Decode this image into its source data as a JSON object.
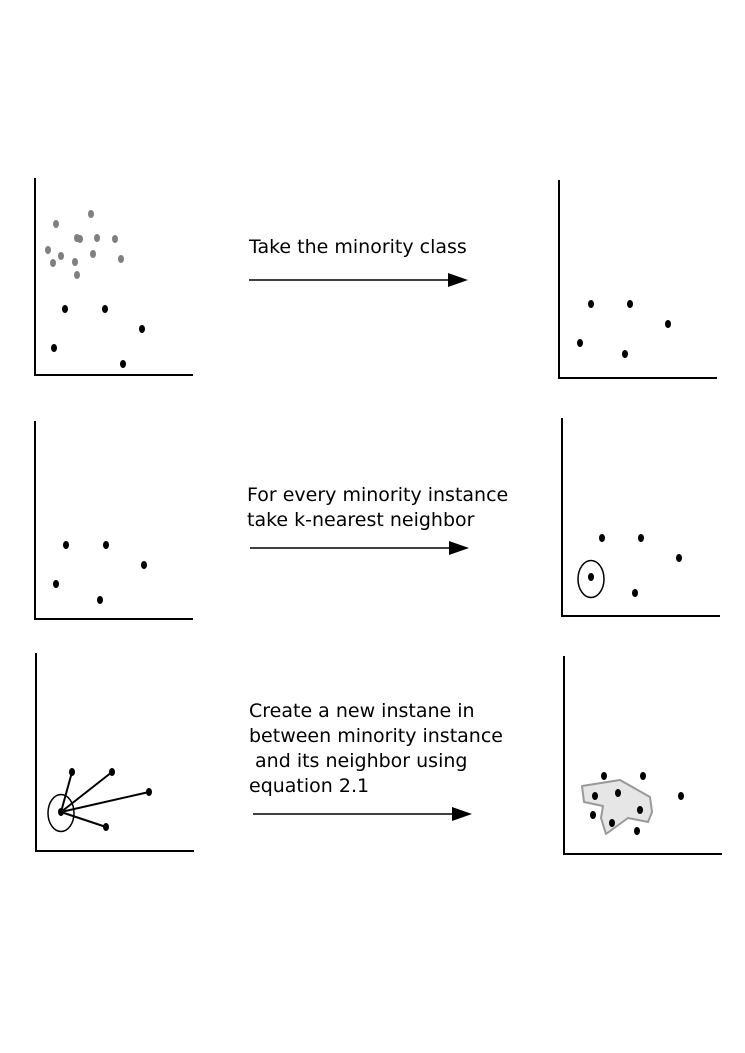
{
  "steps": [
    {
      "caption_lines": [
        "Take the minority class"
      ]
    },
    {
      "caption_lines": [
        "For every minority instance",
        "take k-nearest neighbor"
      ]
    },
    {
      "caption_lines": [
        "Create a new instane in",
        "between minority instance",
        " and its neighbor using",
        "equation 2.1"
      ]
    }
  ],
  "colors": {
    "minority_point": "#000000",
    "majority_point": "#808080",
    "synthetic_region_fill": "#e6e6e6",
    "synthetic_region_stroke": "#999999",
    "axis": "#000000"
  }
}
